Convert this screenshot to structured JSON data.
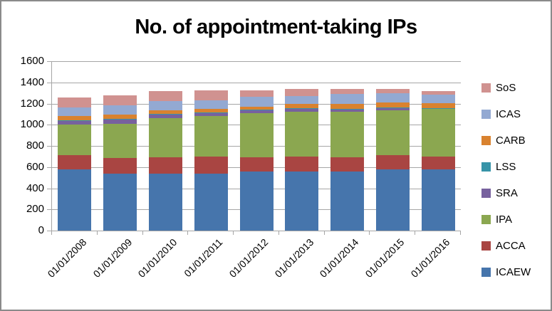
{
  "window": {
    "background": "#FFFFFF",
    "border_color": "#8A8A8A",
    "axis_color": "#A6A6A6"
  },
  "chart_data": {
    "type": "bar",
    "stacked": true,
    "title": "No. of appointment-taking IPs",
    "xlabel": "",
    "ylabel": "",
    "ylim": [
      0,
      1600
    ],
    "yticks": [
      0,
      200,
      400,
      600,
      800,
      1000,
      1200,
      1400,
      1600
    ],
    "grid": true,
    "categories": [
      "01/01/2008",
      "01/01/2009",
      "01/01/2010",
      "01/01/2011",
      "01/01/2012",
      "01/01/2013",
      "01/01/2014",
      "01/01/2015",
      "01/01/2016"
    ],
    "series": [
      {
        "name": "ICAEW",
        "color": "#4675AC",
        "values": [
          575,
          535,
          535,
          540,
          555,
          560,
          555,
          575,
          580
        ]
      },
      {
        "name": "ACCA",
        "color": "#A94542",
        "values": [
          135,
          150,
          155,
          160,
          135,
          140,
          140,
          135,
          118
        ]
      },
      {
        "name": "IPA",
        "color": "#8BA750",
        "values": [
          290,
          325,
          375,
          385,
          420,
          425,
          428,
          425,
          450
        ]
      },
      {
        "name": "SRA",
        "color": "#77619E",
        "values": [
          35,
          40,
          30,
          28,
          25,
          25,
          24,
          22,
          8
        ]
      },
      {
        "name": "LSS",
        "color": "#3794A8",
        "values": [
          5,
          5,
          5,
          5,
          5,
          5,
          5,
          5,
          3
        ]
      },
      {
        "name": "CARB",
        "color": "#D9822F",
        "values": [
          40,
          40,
          35,
          32,
          27,
          45,
          48,
          50,
          45
        ]
      },
      {
        "name": "ICAS",
        "color": "#93A9D2",
        "values": [
          85,
          90,
          90,
          82,
          95,
          70,
          88,
          85,
          78
        ]
      },
      {
        "name": "SoS",
        "color": "#D09290",
        "values": [
          90,
          95,
          95,
          95,
          63,
          70,
          50,
          43,
          33
        ]
      }
    ],
    "totals": [
      1255,
      1280,
      1320,
      1327,
      1325,
      1340,
      1338,
      1340,
      1315
    ],
    "legend": {
      "position": "right",
      "order_top_to_bottom": [
        "SoS",
        "ICAS",
        "CARB",
        "LSS",
        "SRA",
        "IPA",
        "ACCA",
        "ICAEW"
      ]
    }
  }
}
